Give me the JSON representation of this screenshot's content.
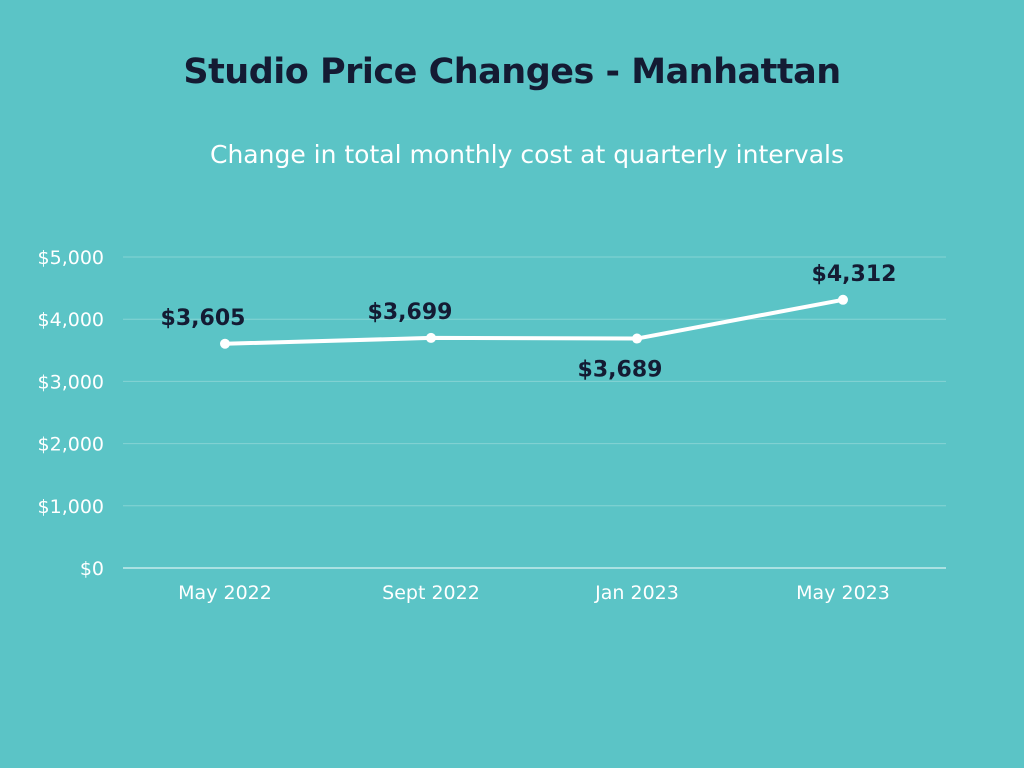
{
  "chart_data": {
    "type": "line",
    "title": "Studio Price Changes - Manhattan",
    "subtitle": "Change in total monthly cost at quarterly intervals",
    "categories": [
      "May 2022",
      "Sept 2022",
      "Jan 2023",
      "May 2023"
    ],
    "values": [
      3605,
      3699,
      3689,
      4312
    ],
    "data_labels": [
      "$3,605",
      "$3,699",
      "$3,689",
      "$4,312"
    ],
    "data_label_positions": [
      "above",
      "above",
      "below",
      "above"
    ],
    "yticks": [
      0,
      1000,
      2000,
      3000,
      4000,
      5000
    ],
    "ytick_labels": [
      "$0",
      "$1,000",
      "$2,000",
      "$3,000",
      "$4,000",
      "$5,000"
    ],
    "ylim": [
      0,
      5000
    ],
    "grid": true,
    "legend": false,
    "colors": {
      "background": "#5bc4c6",
      "line": "#ffffff",
      "gridline": "#86d3d4",
      "title": "#141b33",
      "data_label": "#141b33"
    }
  }
}
